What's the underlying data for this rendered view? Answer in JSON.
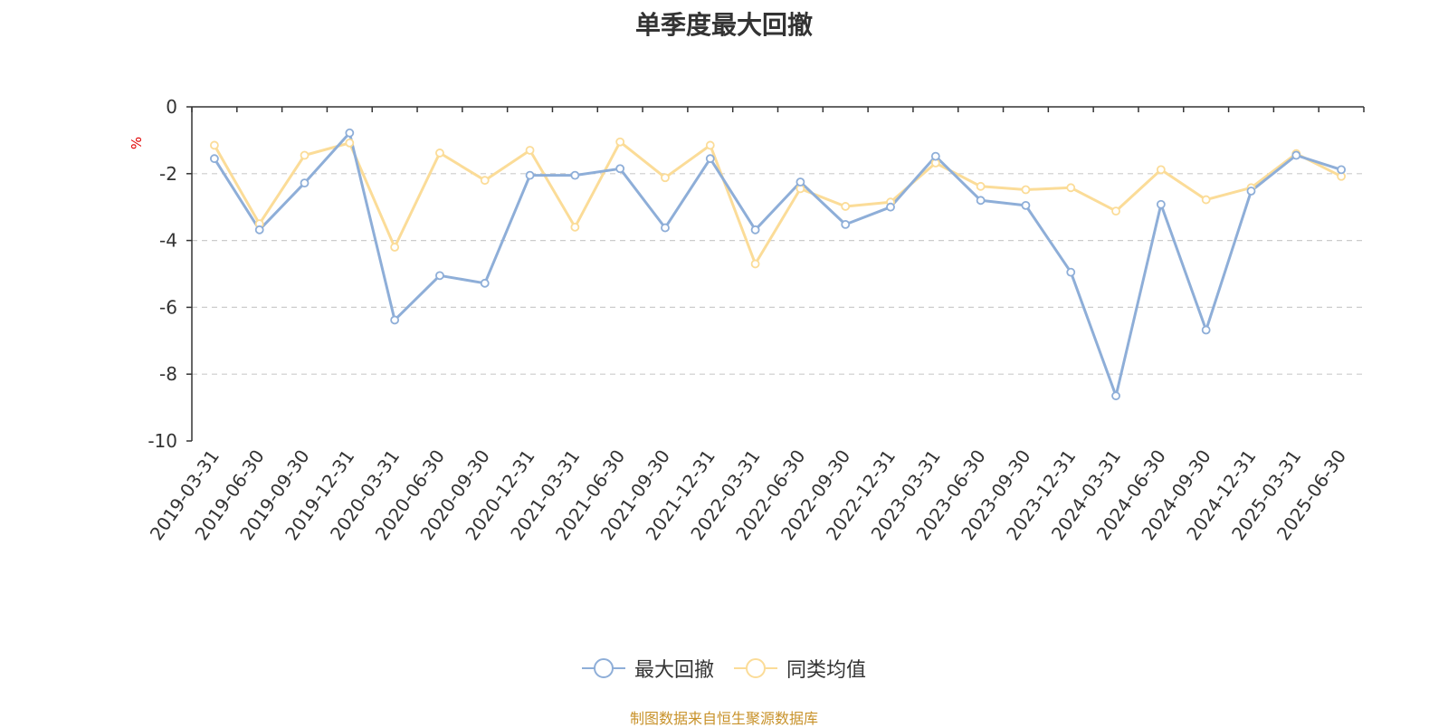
{
  "chart_data": {
    "type": "line",
    "title": "单季度最大回撤",
    "ylabel": "%",
    "ylim": [
      -10,
      0
    ],
    "yticks": [
      0,
      -2,
      -4,
      -6,
      -8,
      -10
    ],
    "grid": true,
    "legend_position": "bottom-center",
    "categories": [
      "2019-03-31",
      "2019-06-30",
      "2019-09-30",
      "2019-12-31",
      "2020-03-31",
      "2020-06-30",
      "2020-09-30",
      "2020-12-31",
      "2021-03-31",
      "2021-06-30",
      "2021-09-30",
      "2021-12-31",
      "2022-03-31",
      "2022-06-30",
      "2022-09-30",
      "2022-12-31",
      "2023-03-31",
      "2023-06-30",
      "2023-09-30",
      "2023-12-31",
      "2024-03-31",
      "2024-06-30",
      "2024-09-30",
      "2024-12-31",
      "2025-03-31",
      "2025-06-30"
    ],
    "series": [
      {
        "name": "最大回撤",
        "color": "#8eaed8",
        "values": [
          -1.55,
          -3.68,
          -2.28,
          -0.78,
          -6.38,
          -5.05,
          -5.28,
          -2.05,
          -2.05,
          -1.85,
          -3.62,
          -1.55,
          -3.68,
          -2.25,
          -3.52,
          -3.0,
          -1.48,
          -2.8,
          -2.95,
          -4.95,
          -8.65,
          -2.92,
          -6.68,
          -2.52,
          -1.45,
          -1.88
        ]
      },
      {
        "name": "同类均值",
        "color": "#fbdc98",
        "values": [
          -1.15,
          -3.5,
          -1.45,
          -1.08,
          -4.2,
          -1.38,
          -2.2,
          -1.3,
          -3.6,
          -1.05,
          -2.12,
          -1.15,
          -4.7,
          -2.45,
          -2.98,
          -2.85,
          -1.68,
          -2.38,
          -2.48,
          -2.42,
          -3.12,
          -1.88,
          -2.78,
          -2.42,
          -1.4,
          -2.08
        ]
      }
    ]
  },
  "source_note": "制图数据来自恒生聚源数据库"
}
